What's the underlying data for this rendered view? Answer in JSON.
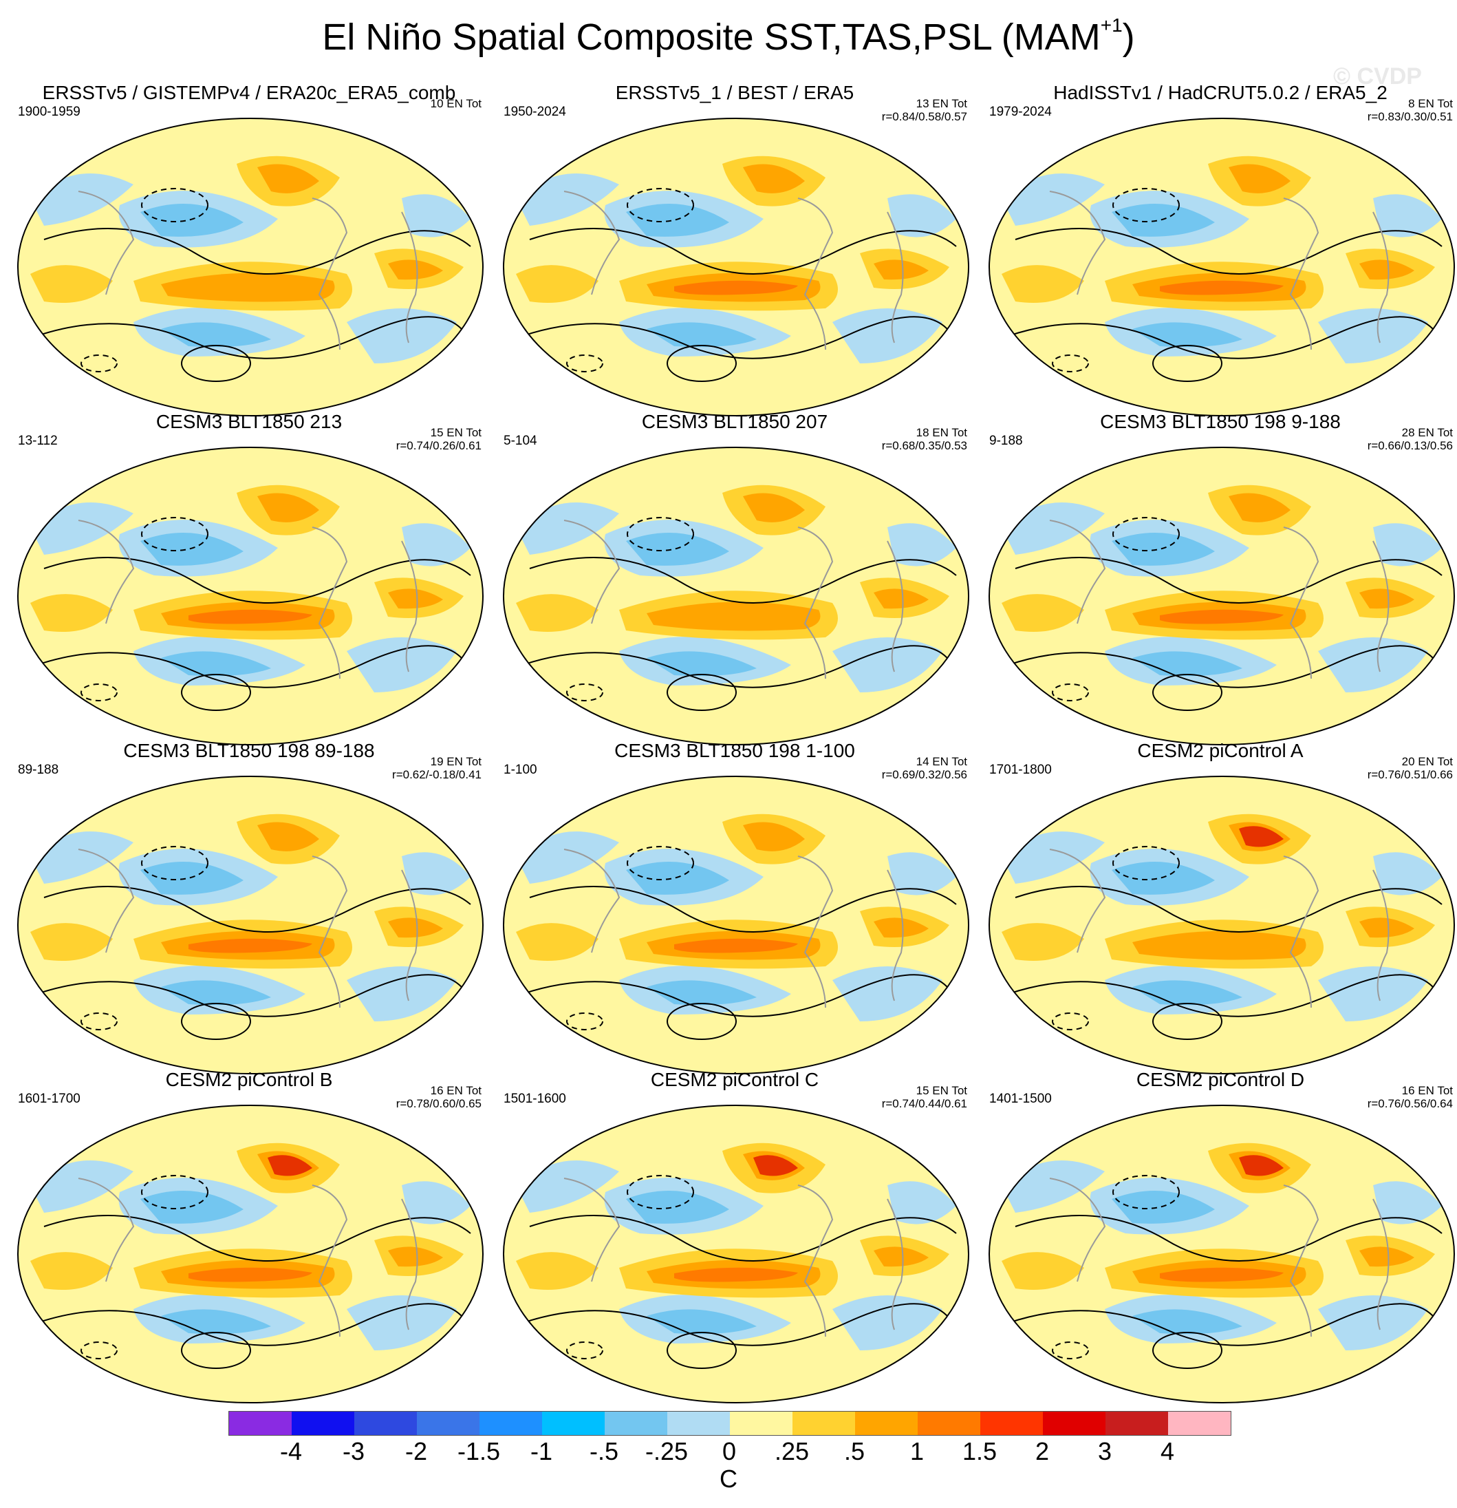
{
  "figure": {
    "title": "El Niño Spatial Composite SST,TAS,PSL (MAM",
    "title_superscript": "+1",
    "title_close": ")",
    "watermark": "© CVDP"
  },
  "panels": [
    {
      "title": "ERSSTv5 / GISTEMPv4 / ERA20c_ERA5_comb",
      "period": "1900-1959",
      "count": "10 EN Tot",
      "corr": ""
    },
    {
      "title": "ERSSTv5_1 / BEST / ERA5",
      "period": "1950-2024",
      "count": "13 EN Tot",
      "corr": "r=0.84/0.58/0.57"
    },
    {
      "title": "HadISSTv1 / HadCRUT5.0.2 / ERA5_2",
      "period": "1979-2024",
      "count": "8 EN Tot",
      "corr": "r=0.83/0.30/0.51"
    },
    {
      "title": "CESM3 BLT1850 213",
      "period": "13-112",
      "count": "15 EN Tot",
      "corr": "r=0.74/0.26/0.61"
    },
    {
      "title": "CESM3 BLT1850 207",
      "period": "5-104",
      "count": "18 EN Tot",
      "corr": "r=0.68/0.35/0.53"
    },
    {
      "title": "CESM3 BLT1850 198 9-188",
      "period": "9-188",
      "count": "28 EN Tot",
      "corr": "r=0.66/0.13/0.56"
    },
    {
      "title": "CESM3 BLT1850 198 89-188",
      "period": "89-188",
      "count": "19 EN Tot",
      "corr": "r=0.62/-0.18/0.41"
    },
    {
      "title": "CESM3 BLT1850 198 1-100",
      "period": "1-100",
      "count": "14 EN Tot",
      "corr": "r=0.69/0.32/0.56"
    },
    {
      "title": "CESM2 piControl A",
      "period": "1701-1800",
      "count": "20 EN Tot",
      "corr": "r=0.76/0.51/0.66"
    },
    {
      "title": "CESM2 piControl B",
      "period": "1601-1700",
      "count": "16 EN Tot",
      "corr": "r=0.78/0.60/0.65"
    },
    {
      "title": "CESM2 piControl C",
      "period": "1501-1600",
      "count": "15 EN Tot",
      "corr": "r=0.74/0.44/0.61"
    },
    {
      "title": "CESM2 piControl D",
      "period": "1401-1500",
      "count": "16 EN Tot",
      "corr": "r=0.76/0.56/0.64"
    }
  ],
  "colorbar": {
    "unit": "C",
    "labels": [
      "-4",
      "-3",
      "-2",
      "-1.5",
      "-1",
      "-.5",
      "-.25",
      "0",
      ".25",
      ".5",
      "1",
      "1.5",
      "2",
      "3",
      "4"
    ],
    "colors": [
      "#8a2be2",
      "#1010f0",
      "#2e49e0",
      "#3a75e8",
      "#1e90ff",
      "#00bfff",
      "#73c6f0",
      "#b0dcf3",
      "#fff7a0",
      "#ffd230",
      "#ffa500",
      "#ff7a00",
      "#ff3500",
      "#e00000",
      "#c81e1e",
      "#ffb6c1"
    ]
  }
}
